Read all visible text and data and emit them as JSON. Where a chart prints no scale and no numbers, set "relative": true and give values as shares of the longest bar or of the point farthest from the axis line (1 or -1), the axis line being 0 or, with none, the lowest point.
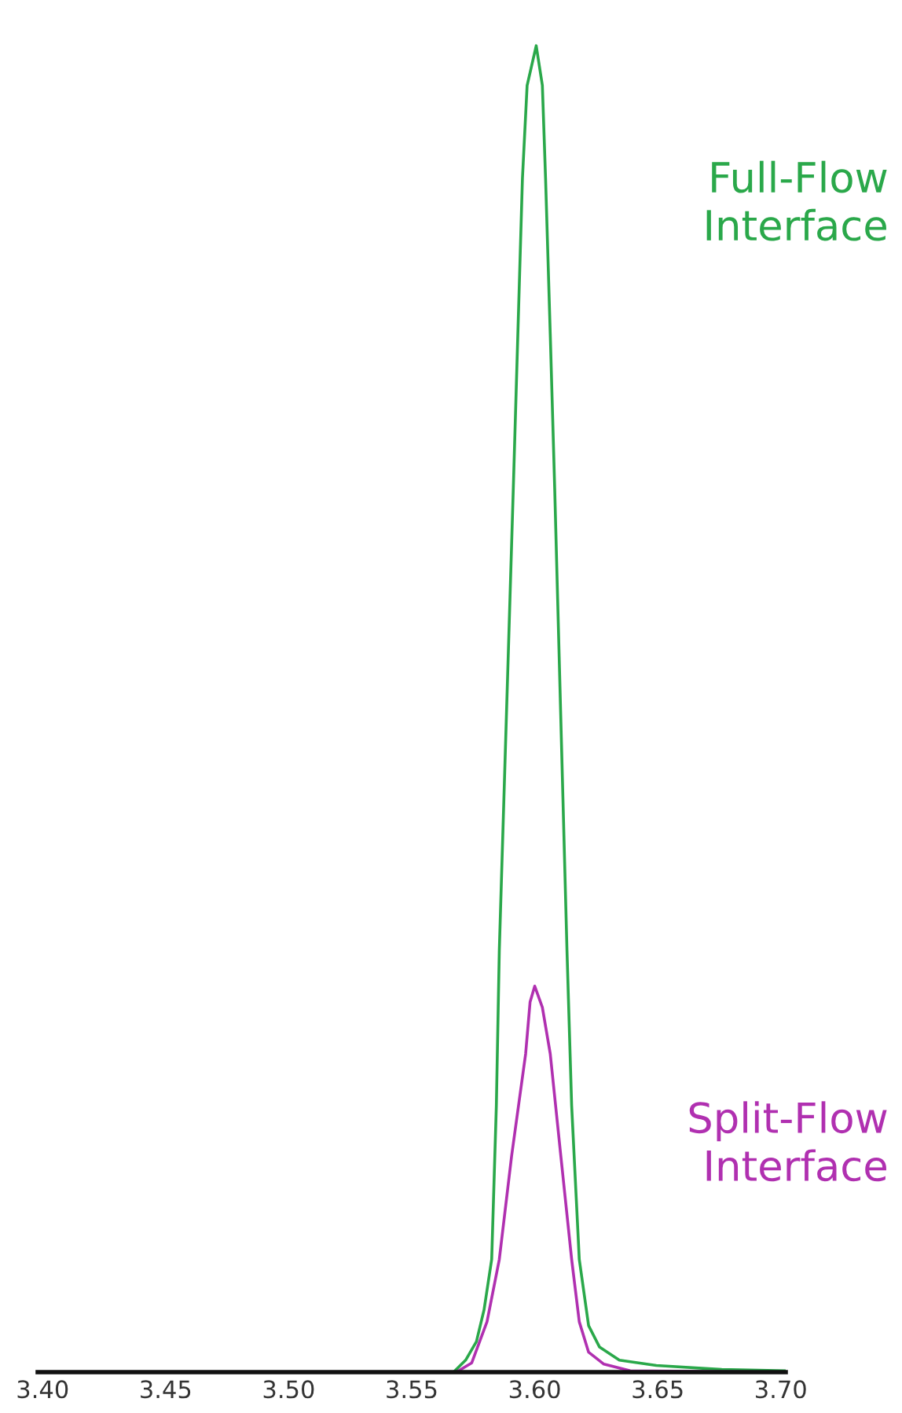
{
  "chart_data": {
    "type": "line",
    "relative": true,
    "xlim": [
      3.398,
      3.702
    ],
    "xticks": [
      {
        "value": 3.4,
        "label": "3.40"
      },
      {
        "value": 3.45,
        "label": "3.45"
      },
      {
        "value": 3.5,
        "label": "3.50"
      },
      {
        "value": 3.55,
        "label": "3.55"
      },
      {
        "value": 3.6,
        "label": "3.60"
      },
      {
        "value": 3.65,
        "label": "3.65"
      },
      {
        "value": 3.7,
        "label": "3.70"
      }
    ],
    "tick_labels": "x",
    "grid": false,
    "legend": false,
    "marker": "none",
    "line_style": "solid",
    "series": [
      {
        "name": "Full-Flow\nInterface",
        "color": "#2aa84a",
        "x": [
          3.398,
          3.567,
          3.5719,
          3.5763,
          3.5794,
          3.5825,
          3.5844,
          3.5856,
          3.5913,
          3.595,
          3.5969,
          3.6006,
          3.6031,
          3.6044,
          3.6063,
          3.6081,
          3.6131,
          3.615,
          3.6181,
          3.6219,
          3.6263,
          3.6344,
          3.6494,
          3.676,
          3.702
        ],
        "values": [
          0,
          0,
          0.009,
          0.023,
          0.047,
          0.085,
          0.201,
          0.318,
          0.667,
          0.9,
          0.97,
          1.0,
          0.97,
          0.9,
          0.783,
          0.667,
          0.318,
          0.201,
          0.085,
          0.035,
          0.019,
          0.009,
          0.005,
          0.002,
          0.001
        ]
      },
      {
        "name": "Split-Flow\nInterface",
        "color": "#b030b0",
        "x": [
          3.398,
          3.5681,
          3.5744,
          3.5806,
          3.5856,
          3.5906,
          3.5963,
          3.5981,
          3.6,
          3.6031,
          3.6063,
          3.6106,
          3.615,
          3.6181,
          3.6219,
          3.6281,
          3.6388,
          3.702
        ],
        "values": [
          0,
          0,
          0.007,
          0.038,
          0.085,
          0.163,
          0.24,
          0.279,
          0.291,
          0.275,
          0.24,
          0.163,
          0.085,
          0.038,
          0.015,
          0.006,
          0.001,
          0
        ]
      }
    ]
  }
}
